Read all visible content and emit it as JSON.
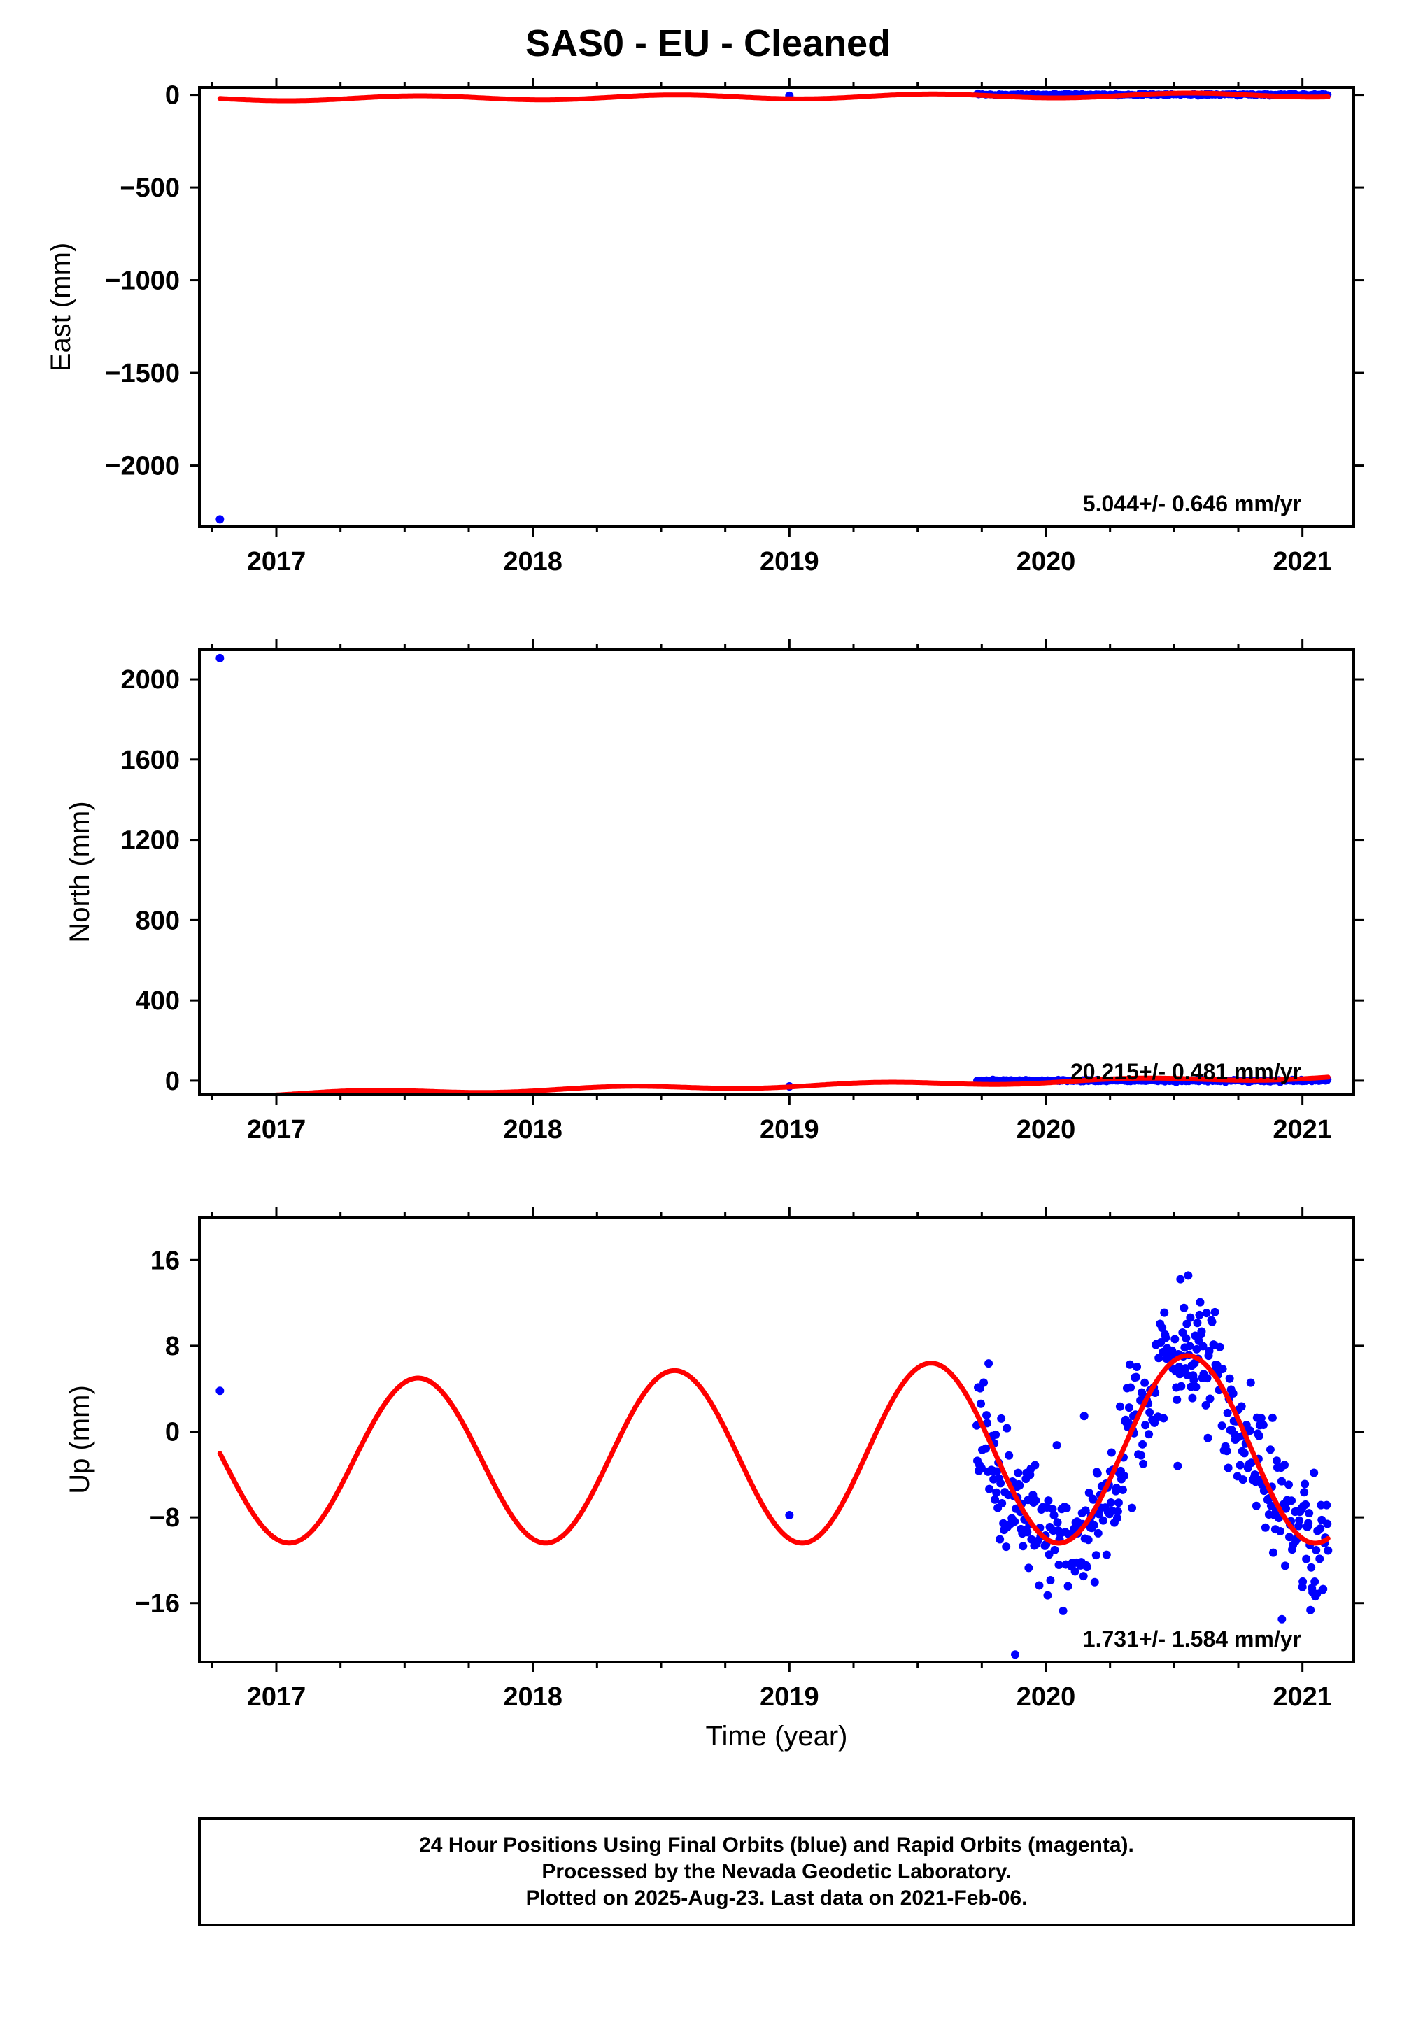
{
  "title": "SAS0  - EU - Cleaned",
  "footer": {
    "lines": [
      "24 Hour Positions Using Final Orbits (blue) and Rapid Orbits (magenta).",
      "Processed by the Nevada Geodetic Laboratory.",
      "Plotted on 2025-Aug-23. Last data on 2021-Feb-06."
    ]
  },
  "colors": {
    "final_orbits": "#0000ff",
    "model": "#ff0000",
    "frame": "#000000"
  },
  "chart_data": [
    {
      "type": "scatter",
      "name": "east",
      "ylabel": "East (mm)",
      "xlabel": "",
      "xlim": [
        2016.7,
        2021.2
      ],
      "ylim": [
        -2330,
        40
      ],
      "yticks": [
        0,
        -500,
        -1000,
        -1500,
        -2000
      ],
      "xticks": [
        2017,
        2018,
        2019,
        2020,
        2021
      ],
      "rate_label": "5.044+/- 0.646 mm/yr",
      "outliers": [
        [
          2016.78,
          -2290
        ],
        [
          2019.0,
          -5
        ]
      ],
      "dense_range": [
        2019.73,
        2021.1
      ],
      "dense_value": 2,
      "model": {
        "offset": -10,
        "trend": 5.044,
        "t0": 2019,
        "amplitude": 12,
        "period": 1.0,
        "phase": 0.3,
        "x_range": [
          2016.78,
          2021.1
        ]
      }
    },
    {
      "type": "scatter",
      "name": "north",
      "ylabel": "North (mm)",
      "xlabel": "",
      "xlim": [
        2016.7,
        2021.2
      ],
      "ylim": [
        -70,
        2150
      ],
      "yticks": [
        0,
        400,
        800,
        1200,
        1600,
        2000
      ],
      "xticks": [
        2017,
        2018,
        2019,
        2020,
        2021
      ],
      "rate_label": "20.215+/- 0.481 mm/yr",
      "outliers": [
        [
          2016.78,
          2105
        ],
        [
          2019.0,
          -28
        ]
      ],
      "dense_range": [
        2019.73,
        2021.1
      ],
      "dense_value": 0,
      "model": {
        "offset": -25,
        "trend": 20.215,
        "t0": 2019,
        "amplitude": 10,
        "period": 1.0,
        "phase": 0.1,
        "x_range": [
          2016.78,
          2021.1
        ]
      }
    },
    {
      "type": "scatter",
      "name": "up",
      "ylabel": "Up (mm)",
      "xlabel": "Time (year)",
      "xlim": [
        2016.7,
        2021.2
      ],
      "ylim": [
        -21.5,
        20
      ],
      "yticks": [
        16,
        8,
        0,
        -8,
        -16
      ],
      "xticks": [
        2017,
        2018,
        2019,
        2020,
        2021
      ],
      "rate_label": "1.731+/- 1.584 mm/yr",
      "outliers": [
        [
          2016.78,
          3.8
        ],
        [
          2019.0,
          -7.8
        ],
        [
          2019.88,
          -20.8
        ],
        [
          2020.92,
          -17.5
        ],
        [
          2021.0,
          -14.5
        ]
      ],
      "dense_range": [
        2019.73,
        2021.1
      ],
      "model": {
        "mean": -2.2,
        "trend": 1.731,
        "t0": 2019,
        "amplitude_base": 8.2,
        "amplitude_growth": 0.35,
        "period": 1.0,
        "peak_phase": 0.55,
        "x_range": [
          2016.78,
          2021.1
        ]
      },
      "scatter_sigma": 3.2
    }
  ]
}
